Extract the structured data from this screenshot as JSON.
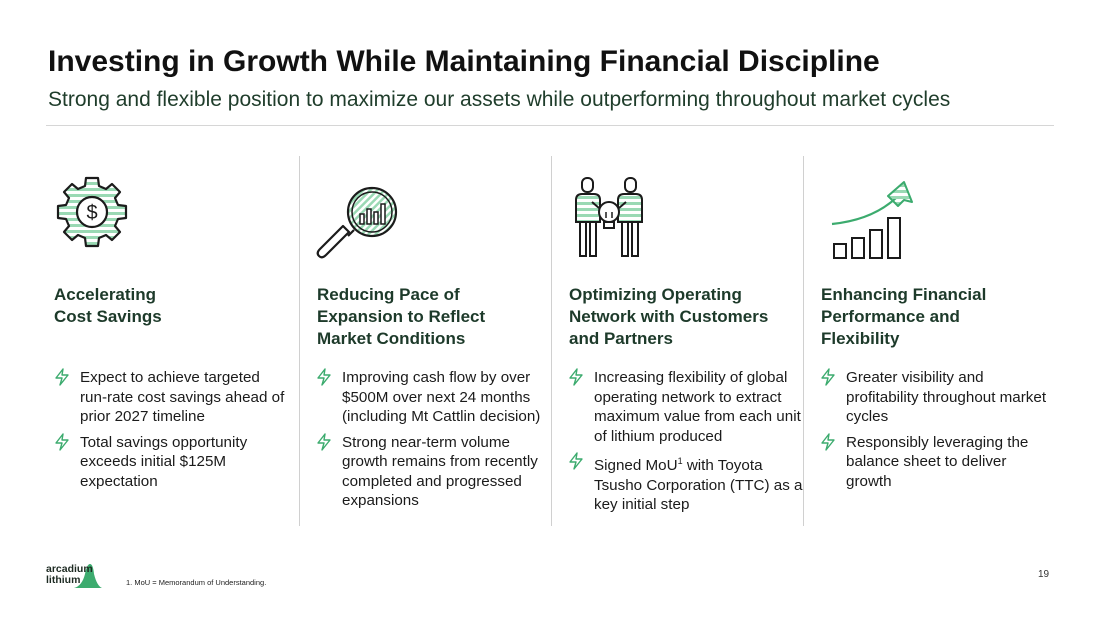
{
  "slide": {
    "title": "Investing in Growth While Maintaining Financial Discipline",
    "subtitle": "Strong and flexible position to maximize our assets while outperforming throughout market cycles"
  },
  "columns": [
    {
      "icon": "gear-dollar-icon",
      "heading_lines": [
        "Accelerating",
        "Cost Savings"
      ],
      "bullets": [
        "Expect to achieve targeted run-rate cost savings ahead of prior 2027 timeline",
        "Total savings opportunity exceeds initial $125M expectation"
      ]
    },
    {
      "icon": "magnifier-chart-icon",
      "heading_lines": [
        "Reducing Pace of",
        "Expansion to Reflect",
        "Market Conditions"
      ],
      "bullets": [
        "Improving cash flow by over $500M over next 24 months (including Mt Cattlin decision)",
        "Strong near-term volume growth remains from recently completed and progressed expansions"
      ]
    },
    {
      "icon": "people-lightbulb-icon",
      "heading_lines": [
        "Optimizing Operating",
        "Network with Customers",
        "and Partners"
      ],
      "bullets": [
        "Increasing flexibility of global operating network to extract maximum value from each unit of lithium produced"
      ],
      "bullet_mou": {
        "before": "Signed MoU",
        "sup": "1",
        "after": " with Toyota Tsusho Corporation (TTC) as a key initial step"
      }
    },
    {
      "icon": "growth-chart-icon",
      "heading_lines": [
        "Enhancing Financial",
        "Performance and",
        "Flexibility"
      ],
      "bullets": [
        "Greater visibility and profitability throughout market cycles",
        "Responsibly leveraging the balance sheet to deliver growth"
      ]
    }
  ],
  "footer": {
    "logo_line1": "arcadium",
    "logo_line2": "lithium",
    "footnote": "1. MoU = Memorandum of Understanding.",
    "page_number": "19"
  },
  "colors": {
    "accent_green": "#3cab6e",
    "hatch_green": "#9ad9b4",
    "heading_green": "#1d3a2a"
  }
}
